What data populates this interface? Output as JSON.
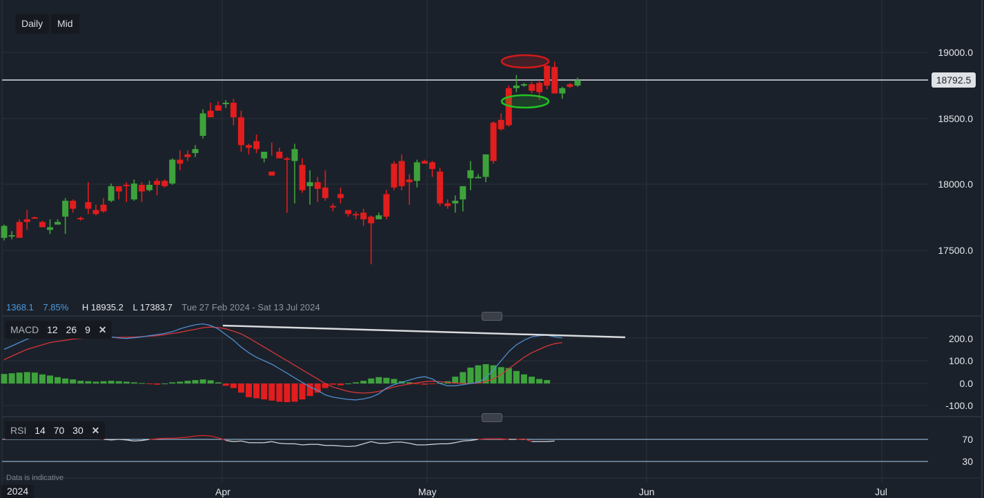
{
  "toolbar": {
    "interval_label": "Daily",
    "price_type_label": "Mid"
  },
  "price_axis": {
    "labels": [
      "19000.0",
      "18500.0",
      "18000.0",
      "17500.0"
    ],
    "current_price": "18792.5"
  },
  "stats": {
    "change": "1368.1",
    "change_pct": "7.85%",
    "high": "H 18935.2",
    "low": "L 17383.7",
    "range": "Tue 27 Feb 2024 - Sat 13 Jul 2024"
  },
  "macd": {
    "name": "MACD",
    "fast": "12",
    "slow": "26",
    "signal": "9",
    "axis_labels": [
      "200.0",
      "100.0",
      "0.0",
      "-100.0"
    ]
  },
  "rsi": {
    "name": "RSI",
    "period": "14",
    "overbought": "70",
    "oversold": "30",
    "axis_labels": [
      "70",
      "30"
    ]
  },
  "time_axis": {
    "year": "2024",
    "labels": [
      "Apr",
      "May",
      "Jun",
      "Jul"
    ]
  },
  "disclaimer": "Data is indicative",
  "colors": {
    "background": "#1b212a",
    "up": "#3ea23c",
    "down": "#e11d1d",
    "macd_line": "#4f8fd0",
    "signal_line": "#d8353a",
    "rsi_line": "#cfd3d8",
    "rsi_level": "#a9d1f2",
    "current_price_line": "#aeb3ba"
  },
  "chart_data": {
    "type": "candlestick",
    "title": "Daily Mid",
    "period": "Tue 27 Feb 2024 - Sat 13 Jul 2024",
    "ylim": [
      17000,
      19250
    ],
    "current_price": 18792.5,
    "high": 18935.2,
    "low": 17383.7,
    "annotations": [
      "red ellipse around high near 18935",
      "green ellipse around recent lows near 18650",
      "descending trendline on MACD peaks"
    ],
    "candles": [
      [
        17600,
        17690,
        17700,
        17580
      ],
      [
        17620,
        17620,
        17650,
        17590
      ],
      [
        17720,
        17600,
        17740,
        17610
      ],
      [
        17740,
        17720,
        17810,
        17660
      ],
      [
        17755,
        17750,
        17760,
        17750
      ],
      [
        17720,
        17680,
        17730,
        17680
      ],
      [
        17660,
        17680,
        17740,
        17630
      ],
      [
        17700,
        17720,
        17740,
        17700
      ],
      [
        17760,
        17880,
        17900,
        17630
      ],
      [
        17880,
        17820,
        17890,
        17790
      ],
      [
        17750,
        17740,
        17760,
        17730
      ],
      [
        17870,
        17820,
        18020,
        17780
      ],
      [
        17810,
        17780,
        17850,
        17770
      ],
      [
        17850,
        17800,
        17900,
        17790
      ],
      [
        17880,
        17990,
        18010,
        17870
      ],
      [
        17990,
        17950,
        17990,
        17890
      ],
      [
        18000,
        17990,
        18020,
        17870
      ],
      [
        17890,
        18010,
        18040,
        17880
      ],
      [
        18000,
        17950,
        18020,
        17870
      ],
      [
        17960,
        18000,
        18030,
        17950
      ],
      [
        18030,
        18000,
        18050,
        17920
      ],
      [
        18030,
        17990,
        18040,
        17980
      ],
      [
        18010,
        18190,
        18200,
        18000
      ],
      [
        18190,
        18160,
        18260,
        18110
      ],
      [
        18230,
        18210,
        18260,
        18180
      ],
      [
        18240,
        18270,
        18300,
        18210
      ],
      [
        18370,
        18540,
        18570,
        18350
      ],
      [
        18560,
        18510,
        18620,
        18540
      ],
      [
        18600,
        18560,
        18630,
        18560
      ],
      [
        18620,
        18620,
        18640,
        18580
      ],
      [
        18620,
        18510,
        18650,
        18450
      ],
      [
        18510,
        18300,
        18560,
        18250
      ],
      [
        18300,
        18280,
        18310,
        18230
      ],
      [
        18330,
        18270,
        18380,
        18240
      ],
      [
        18200,
        18250,
        18230,
        18170
      ],
      [
        18100,
        18070,
        18320,
        18220
      ],
      [
        18250,
        18200,
        18280,
        18210
      ],
      [
        18200,
        18190,
        18210,
        17790
      ],
      [
        18180,
        18270,
        18310,
        17860
      ],
      [
        18150,
        17960,
        18200,
        17940
      ],
      [
        17990,
        18020,
        18110,
        17850
      ],
      [
        18020,
        17970,
        18060,
        17870
      ],
      [
        17980,
        17900,
        18110,
        17880
      ],
      [
        17840,
        17830,
        17860,
        17800
      ],
      [
        17930,
        17900,
        17980,
        17860
      ],
      [
        17810,
        17780,
        17780,
        17760
      ],
      [
        17780,
        17770,
        17800,
        17740
      ],
      [
        17790,
        17740,
        17820,
        17690
      ],
      [
        17760,
        17710,
        17770,
        17400
      ],
      [
        17740,
        17770,
        17790,
        17740
      ],
      [
        17930,
        17760,
        17960,
        17740
      ],
      [
        18160,
        17980,
        18180,
        17960
      ],
      [
        18180,
        17990,
        18230,
        17960
      ],
      [
        18040,
        18020,
        18080,
        17850
      ],
      [
        18030,
        18170,
        18190,
        17980
      ],
      [
        18180,
        18160,
        18190,
        18180
      ],
      [
        18170,
        18120,
        18180,
        18060
      ],
      [
        18100,
        17860,
        18130,
        17840
      ],
      [
        17860,
        17840,
        17890,
        17820
      ],
      [
        17860,
        17880,
        17920,
        17790
      ],
      [
        17890,
        17990,
        17990,
        17800
      ],
      [
        18050,
        18110,
        18180,
        17960
      ],
      [
        18060,
        18060,
        18080,
        18060
      ],
      [
        18060,
        18230,
        18230,
        18020
      ],
      [
        18470,
        18180,
        18480,
        18160
      ],
      [
        18490,
        18420,
        18540,
        18410
      ],
      [
        18730,
        18450,
        18750,
        18440
      ],
      [
        18730,
        18750,
        18830,
        18700
      ],
      [
        18750,
        18760,
        18770,
        18740
      ],
      [
        18760,
        18710,
        18780,
        18690
      ],
      [
        18770,
        18700,
        18790,
        18640
      ],
      [
        18900,
        18750,
        18900,
        18720
      ],
      [
        18890,
        18690,
        18930,
        18690
      ],
      [
        18690,
        18730,
        18740,
        18650
      ],
      [
        18760,
        18740,
        18770,
        18730
      ],
      [
        18750,
        18790,
        18810,
        18740
      ]
    ],
    "macd": {
      "macd_line": [
        150,
        165,
        180,
        195,
        205,
        210,
        208,
        205,
        203,
        207,
        210,
        212,
        209,
        207,
        205,
        200,
        198,
        201,
        205,
        210,
        215,
        220,
        228,
        240,
        250,
        258,
        262,
        255,
        240,
        215,
        190,
        160,
        135,
        115,
        100,
        85,
        65,
        45,
        25,
        5,
        -15,
        -30,
        -50,
        -60,
        -65,
        -70,
        -72,
        -68,
        -60,
        -45,
        -20,
        -5,
        5,
        15,
        25,
        30,
        20,
        0,
        -10,
        -10,
        -5,
        0,
        5,
        25,
        60,
        100,
        140,
        170,
        190,
        205,
        210,
        212,
        205,
        200
      ],
      "signal_line": [
        105,
        120,
        135,
        150,
        160,
        170,
        180,
        185,
        190,
        195,
        198,
        200,
        201,
        202,
        203,
        203,
        203,
        204,
        206,
        208,
        210,
        215,
        220,
        225,
        232,
        238,
        245,
        248,
        246,
        240,
        230,
        218,
        200,
        180,
        160,
        140,
        120,
        100,
        80,
        60,
        40,
        20,
        0,
        -15,
        -25,
        -35,
        -40,
        -42,
        -40,
        -35,
        -25,
        -15,
        -8,
        -2,
        3,
        8,
        10,
        8,
        5,
        2,
        0,
        0,
        2,
        8,
        20,
        40,
        65,
        90,
        115,
        135,
        150,
        165,
        175,
        180
      ],
      "histogram": [
        42,
        45,
        48,
        50,
        48,
        40,
        35,
        28,
        22,
        18,
        12,
        10,
        8,
        10,
        12,
        10,
        8,
        5,
        2,
        -3,
        -5,
        0,
        5,
        8,
        12,
        15,
        18,
        14,
        5,
        -10,
        -20,
        -40,
        -60,
        -65,
        -70,
        -75,
        -80,
        -82,
        -80,
        -70,
        -55,
        -40,
        -20,
        -5,
        -8,
        0,
        5,
        12,
        22,
        28,
        25,
        20,
        10,
        5,
        -3,
        -5,
        -2,
        3,
        10,
        30,
        50,
        70,
        80,
        85,
        80,
        72,
        68,
        55,
        40,
        30,
        20,
        15
      ],
      "ylim": [
        -150,
        280
      ]
    },
    "rsi": {
      "values": [
        71,
        72,
        73,
        74,
        74,
        73,
        72,
        72,
        71,
        72,
        73,
        72,
        71,
        70,
        69,
        70,
        69,
        67,
        68,
        70,
        71,
        72,
        72,
        73,
        74,
        76,
        77,
        76,
        73,
        68,
        66,
        67,
        64,
        64,
        64,
        66,
        63,
        62,
        62,
        60,
        61,
        61,
        59,
        59,
        58,
        57,
        58,
        62,
        66,
        63,
        63,
        65,
        65,
        63,
        60,
        60,
        61,
        62,
        62,
        64,
        67,
        68,
        70,
        71,
        71,
        71,
        70,
        70,
        71,
        66,
        66,
        66,
        67
      ],
      "levels": [
        70,
        30
      ],
      "ylim": [
        0,
        100
      ]
    },
    "x_ticks": [
      "2024",
      "Apr",
      "May",
      "Jun",
      "Jul"
    ]
  }
}
